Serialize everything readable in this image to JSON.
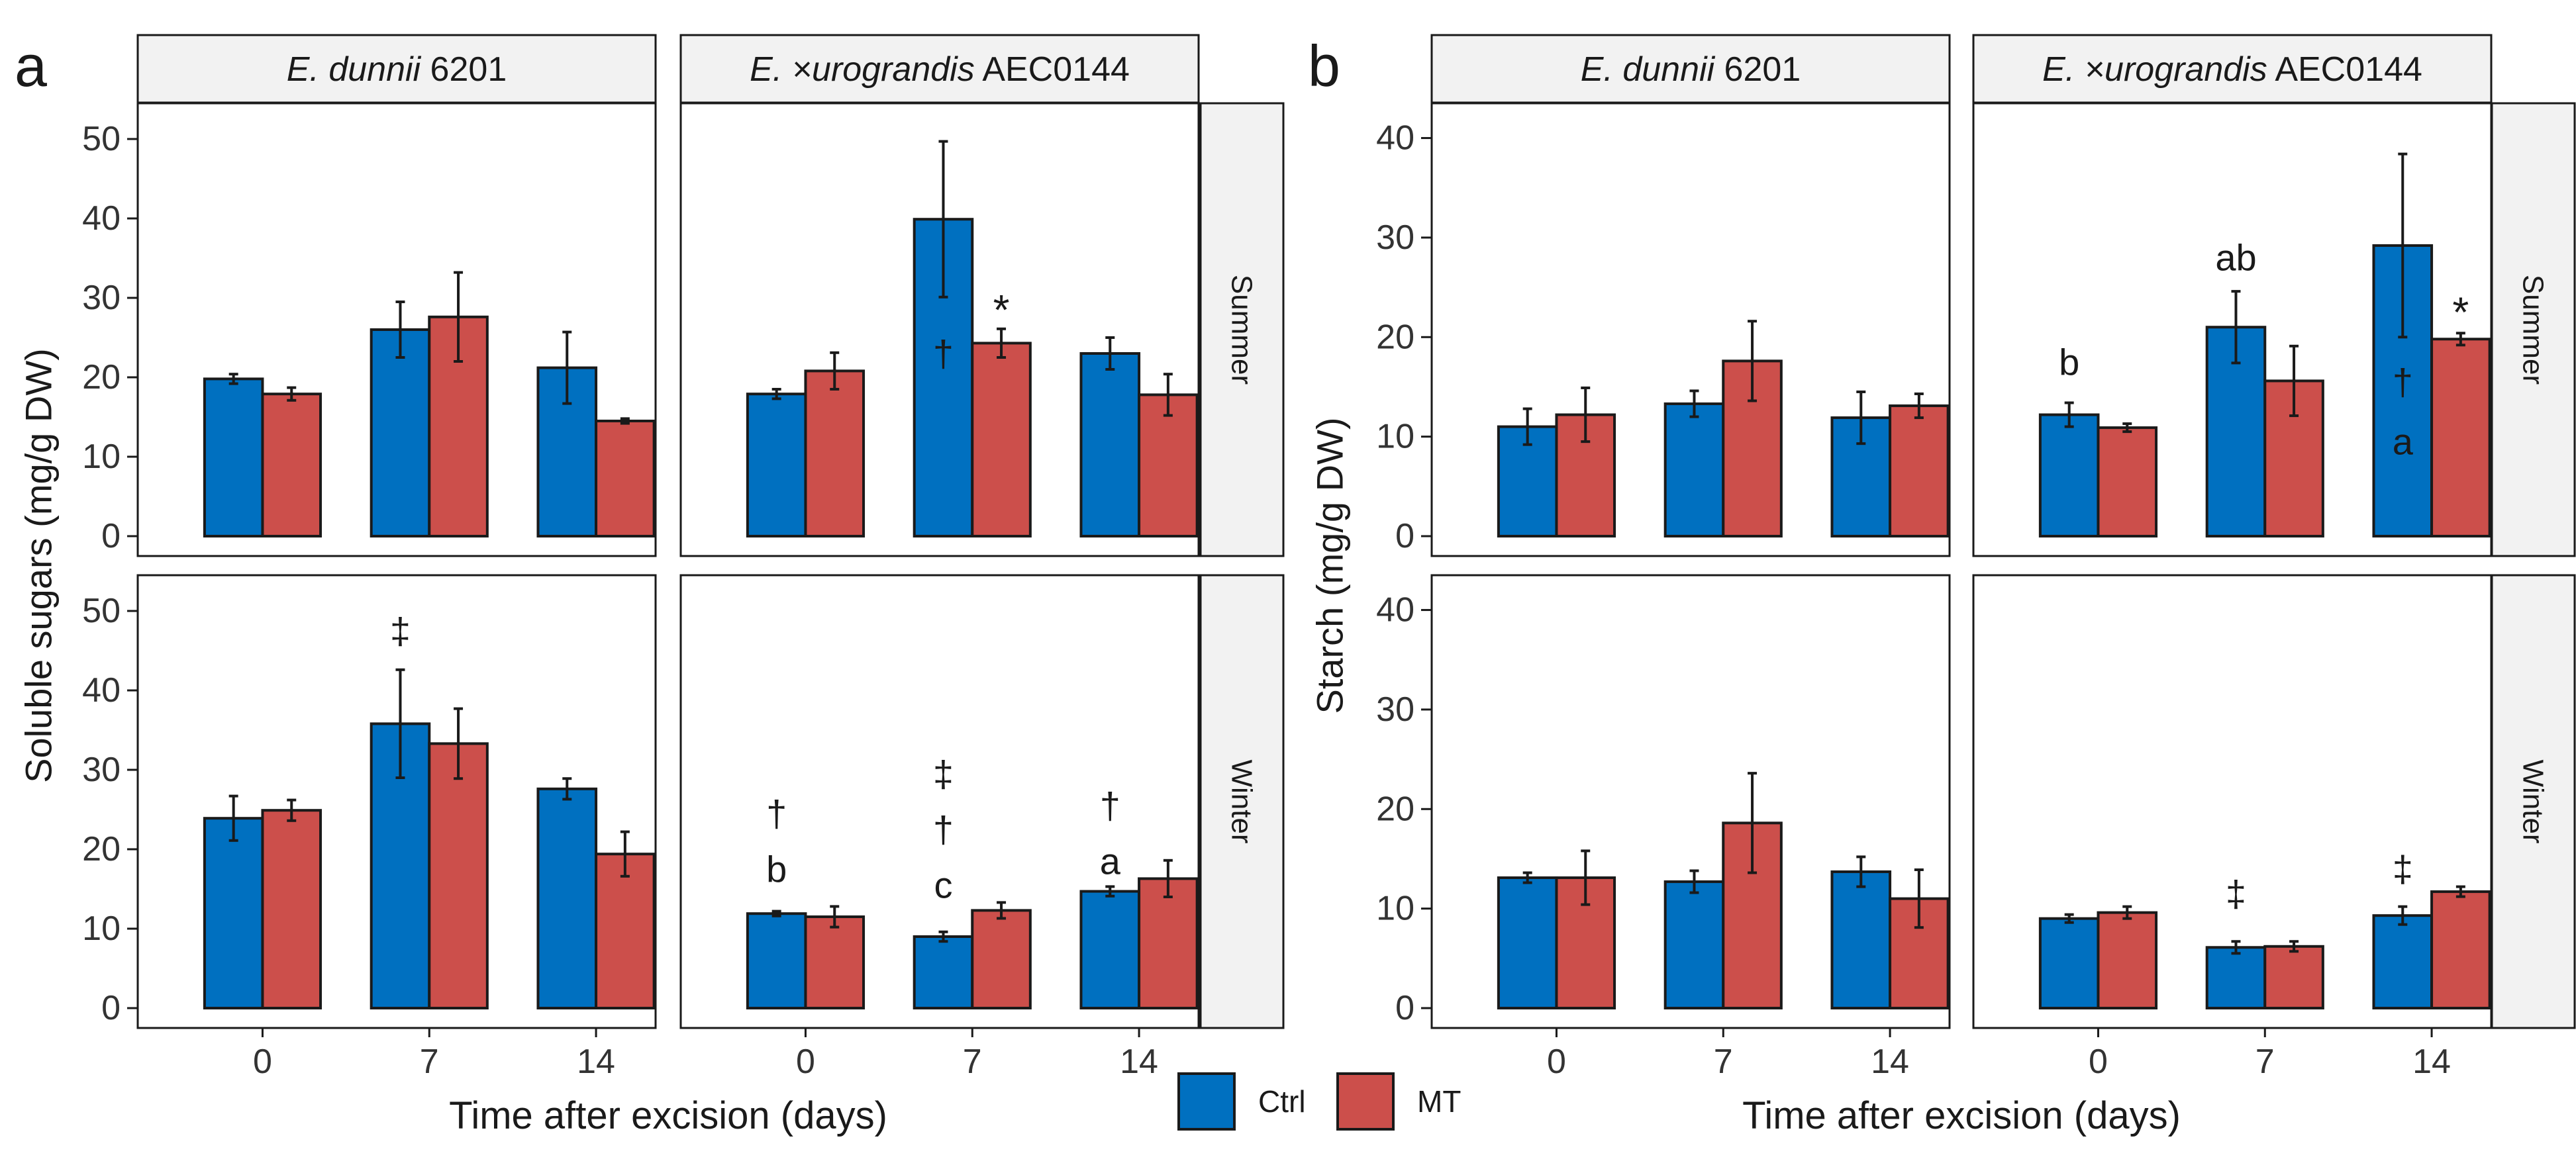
{
  "colors": {
    "ctrl": "#0070c0",
    "mt": "#cc4f4b",
    "strip_fill": "#f2f2f2",
    "border": "#1a1a1a",
    "error_bar": "#1a1a1a"
  },
  "legend": {
    "items": [
      {
        "label": "Ctrl",
        "color": "#0070c0"
      },
      {
        "label": "MT",
        "color": "#cc4f4b"
      }
    ]
  },
  "chart_data": [
    {
      "panel": "a",
      "type": "bar",
      "ylabel": "Soluble sugars (mg/g DW)",
      "xlabel": "Time after excision (days)",
      "ylim": [
        0,
        52
      ],
      "yticks": [
        "0",
        "10",
        "20",
        "30",
        "40",
        "50"
      ],
      "categories": [
        "0",
        "7",
        "14"
      ],
      "facet_cols": [
        {
          "species": "E. dunnii",
          "clone": "6201"
        },
        {
          "species": "E. ×urograndis",
          "clone": "AEC0144"
        }
      ],
      "facet_rows": [
        "Summer",
        "Winter"
      ],
      "series_names": [
        "Ctrl",
        "MT"
      ],
      "facets": [
        {
          "col": 0,
          "row": 0,
          "series": [
            {
              "name": "Ctrl",
              "values": [
                19.8,
                26.0,
                21.2
              ],
              "errors": [
                0.6,
                3.5,
                4.5
              ]
            },
            {
              "name": "MT",
              "values": [
                17.9,
                27.6,
                14.5
              ],
              "errors": [
                0.8,
                5.6,
                0.3
              ]
            }
          ],
          "annotations": []
        },
        {
          "col": 1,
          "row": 0,
          "series": [
            {
              "name": "Ctrl",
              "values": [
                17.9,
                39.9,
                23.0
              ],
              "errors": [
                0.6,
                9.8,
                2.0
              ]
            },
            {
              "name": "MT",
              "values": [
                20.8,
                24.3,
                17.8
              ],
              "errors": [
                2.3,
                1.8,
                2.6
              ]
            }
          ],
          "annotations": [
            {
              "series": 0,
              "category": 1,
              "text": "†",
              "inside": true,
              "y": 23
            },
            {
              "series": 1,
              "category": 1,
              "text": "*",
              "y": 28.5
            }
          ]
        },
        {
          "col": 0,
          "row": 1,
          "series": [
            {
              "name": "Ctrl",
              "values": [
                23.9,
                35.8,
                27.6
              ],
              "errors": [
                2.8,
                6.8,
                1.3
              ]
            },
            {
              "name": "MT",
              "values": [
                24.9,
                33.3,
                19.4
              ],
              "errors": [
                1.3,
                4.4,
                2.8
              ]
            }
          ],
          "annotations": [
            {
              "series": 0,
              "category": 1,
              "text": "‡",
              "y": 47.5
            }
          ]
        },
        {
          "col": 1,
          "row": 1,
          "series": [
            {
              "name": "Ctrl",
              "values": [
                11.9,
                9.0,
                14.7
              ],
              "errors": [
                0.3,
                0.6,
                0.6
              ]
            },
            {
              "name": "MT",
              "values": [
                11.5,
                12.3,
                16.3
              ],
              "errors": [
                1.3,
                1.0,
                2.3
              ]
            }
          ],
          "annotations": [
            {
              "series": 0,
              "category": 0,
              "text": "†",
              "y": 24.5
            },
            {
              "series": 0,
              "category": 0,
              "text": "b",
              "y": 17.5
            },
            {
              "series": 0,
              "category": 1,
              "text": "‡",
              "y": 29.5
            },
            {
              "series": 0,
              "category": 1,
              "text": "†",
              "y": 22.5
            },
            {
              "series": 0,
              "category": 1,
              "text": "c",
              "y": 15.5
            },
            {
              "series": 0,
              "category": 2,
              "text": "†",
              "y": 25.5
            },
            {
              "series": 0,
              "category": 2,
              "text": "a",
              "y": 18.5
            }
          ]
        }
      ]
    },
    {
      "panel": "b",
      "type": "bar",
      "ylabel": "Starch (mg/g DW)",
      "xlabel": "Time after excision (days)",
      "ylim": [
        0,
        41.5
      ],
      "yticks": [
        "0",
        "10",
        "20",
        "30",
        "40"
      ],
      "categories": [
        "0",
        "7",
        "14"
      ],
      "facet_cols": [
        {
          "species": "E. dunnii",
          "clone": "6201"
        },
        {
          "species": "E. ×urograndis",
          "clone": "AEC0144"
        }
      ],
      "facet_rows": [
        "Summer",
        "Winter"
      ],
      "series_names": [
        "Ctrl",
        "MT"
      ],
      "facets": [
        {
          "col": 0,
          "row": 0,
          "series": [
            {
              "name": "Ctrl",
              "values": [
                11.0,
                13.3,
                11.9
              ],
              "errors": [
                1.8,
                1.3,
                2.6
              ]
            },
            {
              "name": "MT",
              "values": [
                12.2,
                17.6,
                13.1
              ],
              "errors": [
                2.7,
                4.0,
                1.2
              ]
            }
          ],
          "annotations": []
        },
        {
          "col": 1,
          "row": 0,
          "series": [
            {
              "name": "Ctrl",
              "values": [
                12.2,
                21.0,
                29.2
              ],
              "errors": [
                1.2,
                3.6,
                9.2
              ]
            },
            {
              "name": "MT",
              "values": [
                10.9,
                15.6,
                19.8
              ],
              "errors": [
                0.4,
                3.5,
                0.6
              ]
            }
          ],
          "annotations": [
            {
              "series": 0,
              "category": 0,
              "text": "b",
              "y": 17.5
            },
            {
              "series": 0,
              "category": 1,
              "text": "ab",
              "y": 28
            },
            {
              "series": 0,
              "category": 2,
              "text": "†",
              "inside": true,
              "y": 15.5
            },
            {
              "series": 0,
              "category": 2,
              "text": "a",
              "inside": true,
              "y": 9.5
            },
            {
              "series": 1,
              "category": 2,
              "text": "*",
              "y": 22.5
            }
          ]
        },
        {
          "col": 0,
          "row": 1,
          "series": [
            {
              "name": "Ctrl",
              "values": [
                13.1,
                12.7,
                13.7
              ],
              "errors": [
                0.5,
                1.1,
                1.5
              ]
            },
            {
              "name": "MT",
              "values": [
                13.1,
                18.6,
                11.0
              ],
              "errors": [
                2.7,
                5.0,
                2.9
              ]
            }
          ],
          "annotations": []
        },
        {
          "col": 1,
          "row": 1,
          "series": [
            {
              "name": "Ctrl",
              "values": [
                9.0,
                6.1,
                9.3
              ],
              "errors": [
                0.4,
                0.6,
                0.9
              ]
            },
            {
              "name": "MT",
              "values": [
                9.6,
                6.2,
                11.7
              ],
              "errors": [
                0.6,
                0.5,
                0.5
              ]
            }
          ],
          "annotations": [
            {
              "series": 0,
              "category": 1,
              "text": "‡",
              "y": 11.5
            },
            {
              "series": 0,
              "category": 2,
              "text": "‡",
              "y": 14
            }
          ]
        }
      ]
    }
  ]
}
